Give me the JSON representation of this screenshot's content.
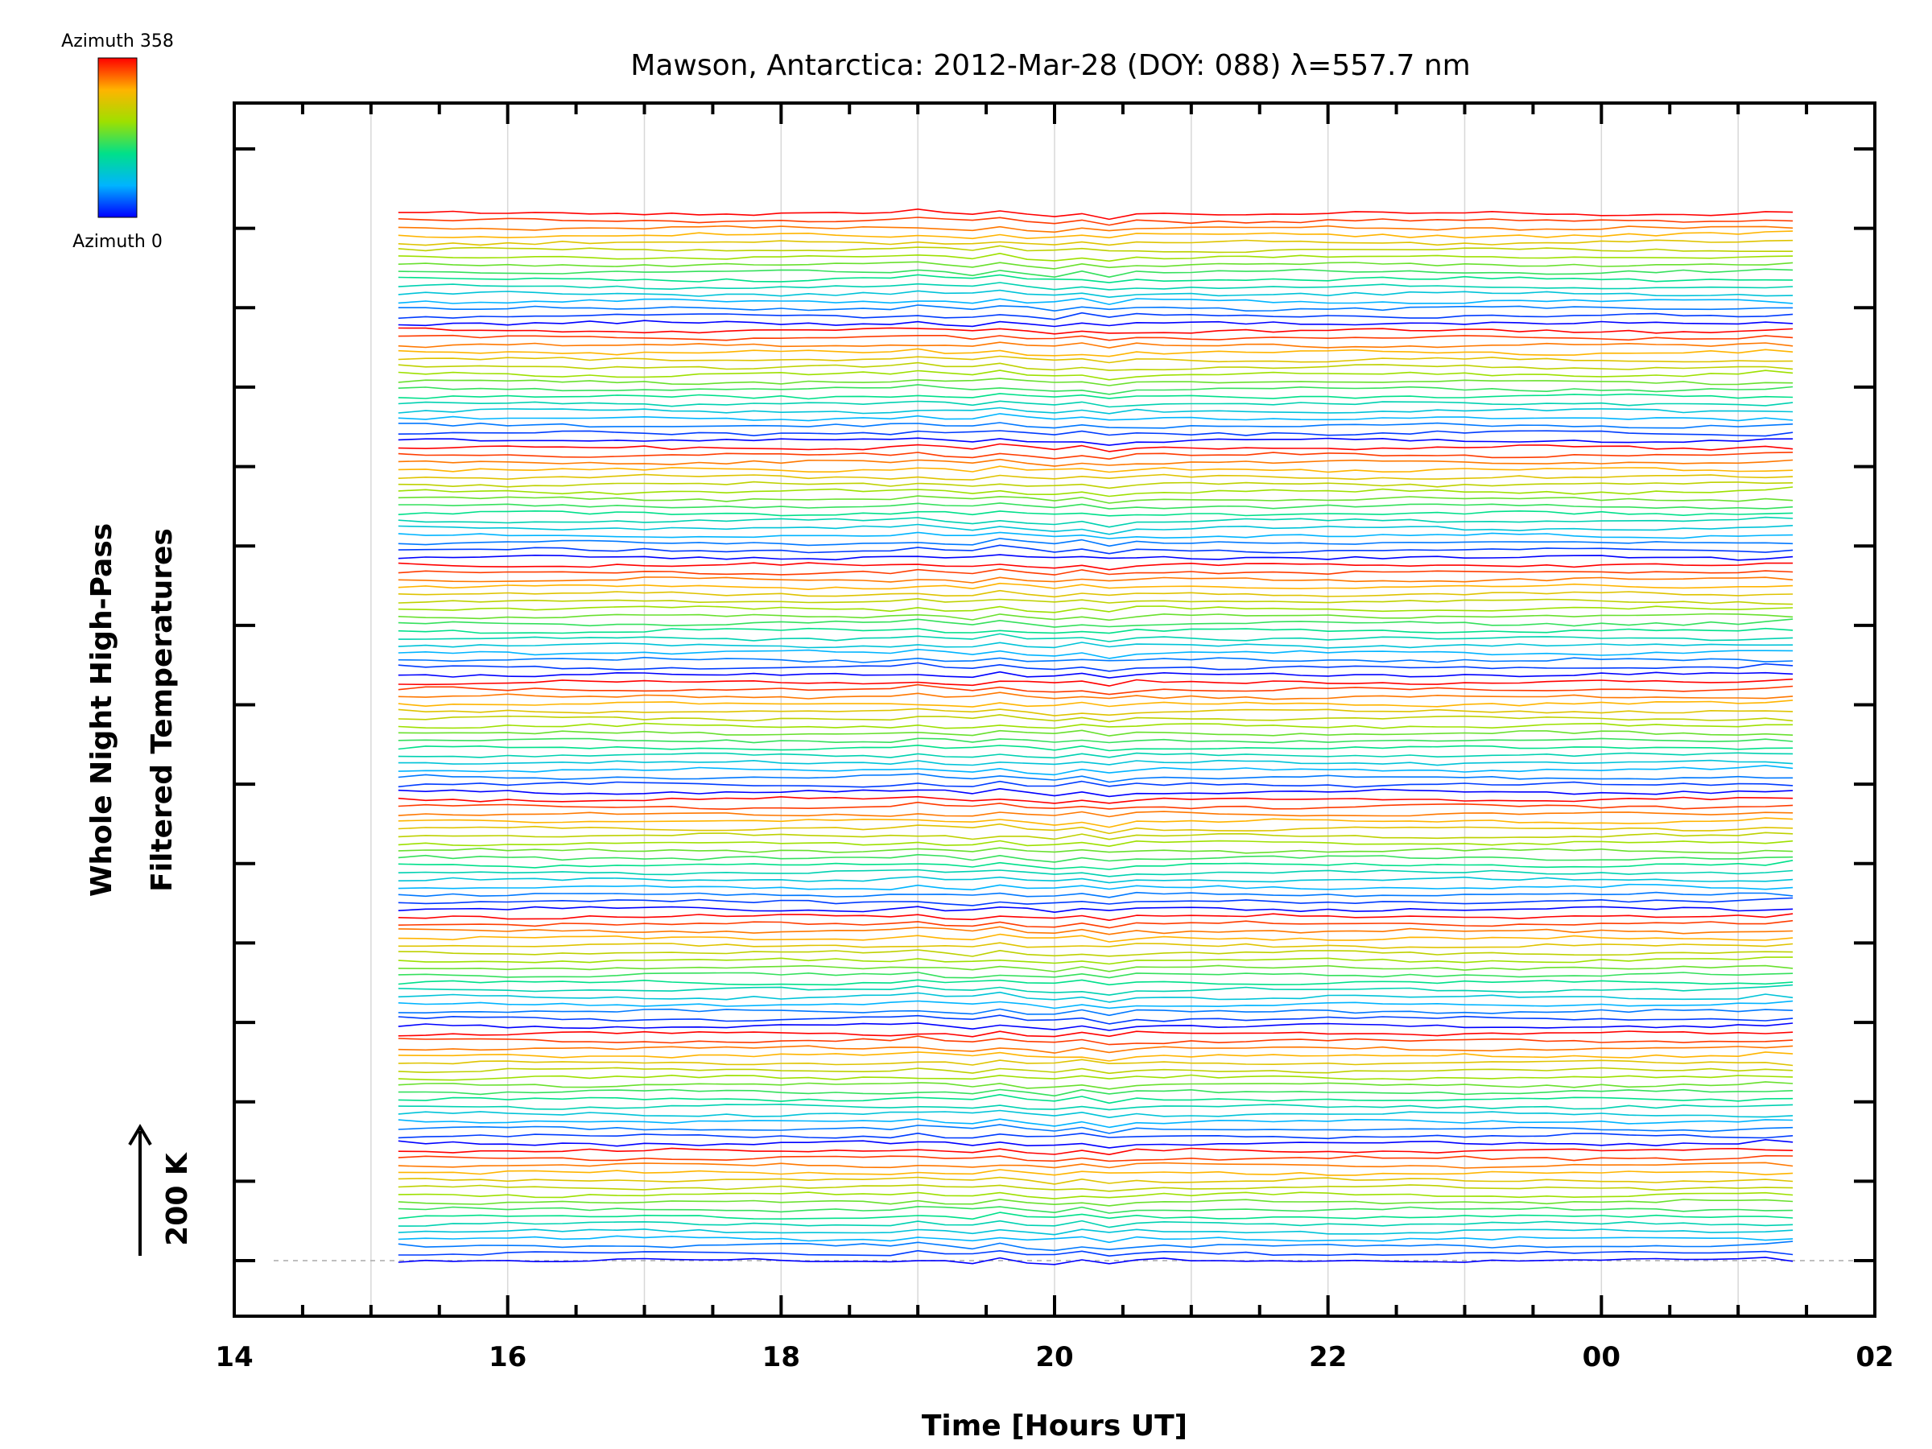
{
  "chart_data": {
    "type": "line",
    "title": "Mawson, Antarctica: 2012-Mar-28 (DOY: 088) λ=557.7 nm",
    "xlabel": "Time [Hours UT]",
    "ylabel_lines": [
      "Whole Night High-Pass",
      "Filtered Temperatures"
    ],
    "scale_indicator": "200 K",
    "x_tick_labels": [
      "14",
      "16",
      "18",
      "20",
      "22",
      "00",
      "02"
    ],
    "xlim": [
      14,
      26
    ],
    "x_start": 15.2,
    "x_end": 25.4,
    "time_step_hours": 0.2,
    "grid": true,
    "colorbar": {
      "top_label": "Azimuth 358",
      "bottom_label": "Azimuth 0",
      "colormap": "rainbow"
    },
    "series_count": 144,
    "series_per_group": 16,
    "stack_spacing_kelvin": 45,
    "scale_bar_kelvin": 200,
    "typical_amplitude_kelvin": 15,
    "common_disturbance": {
      "times": [
        19.0,
        19.4,
        19.6,
        19.8,
        20.0,
        20.2,
        20.4
      ],
      "offsets_kelvin": [
        15,
        -10,
        18,
        -6,
        -18,
        5,
        -25
      ]
    }
  }
}
